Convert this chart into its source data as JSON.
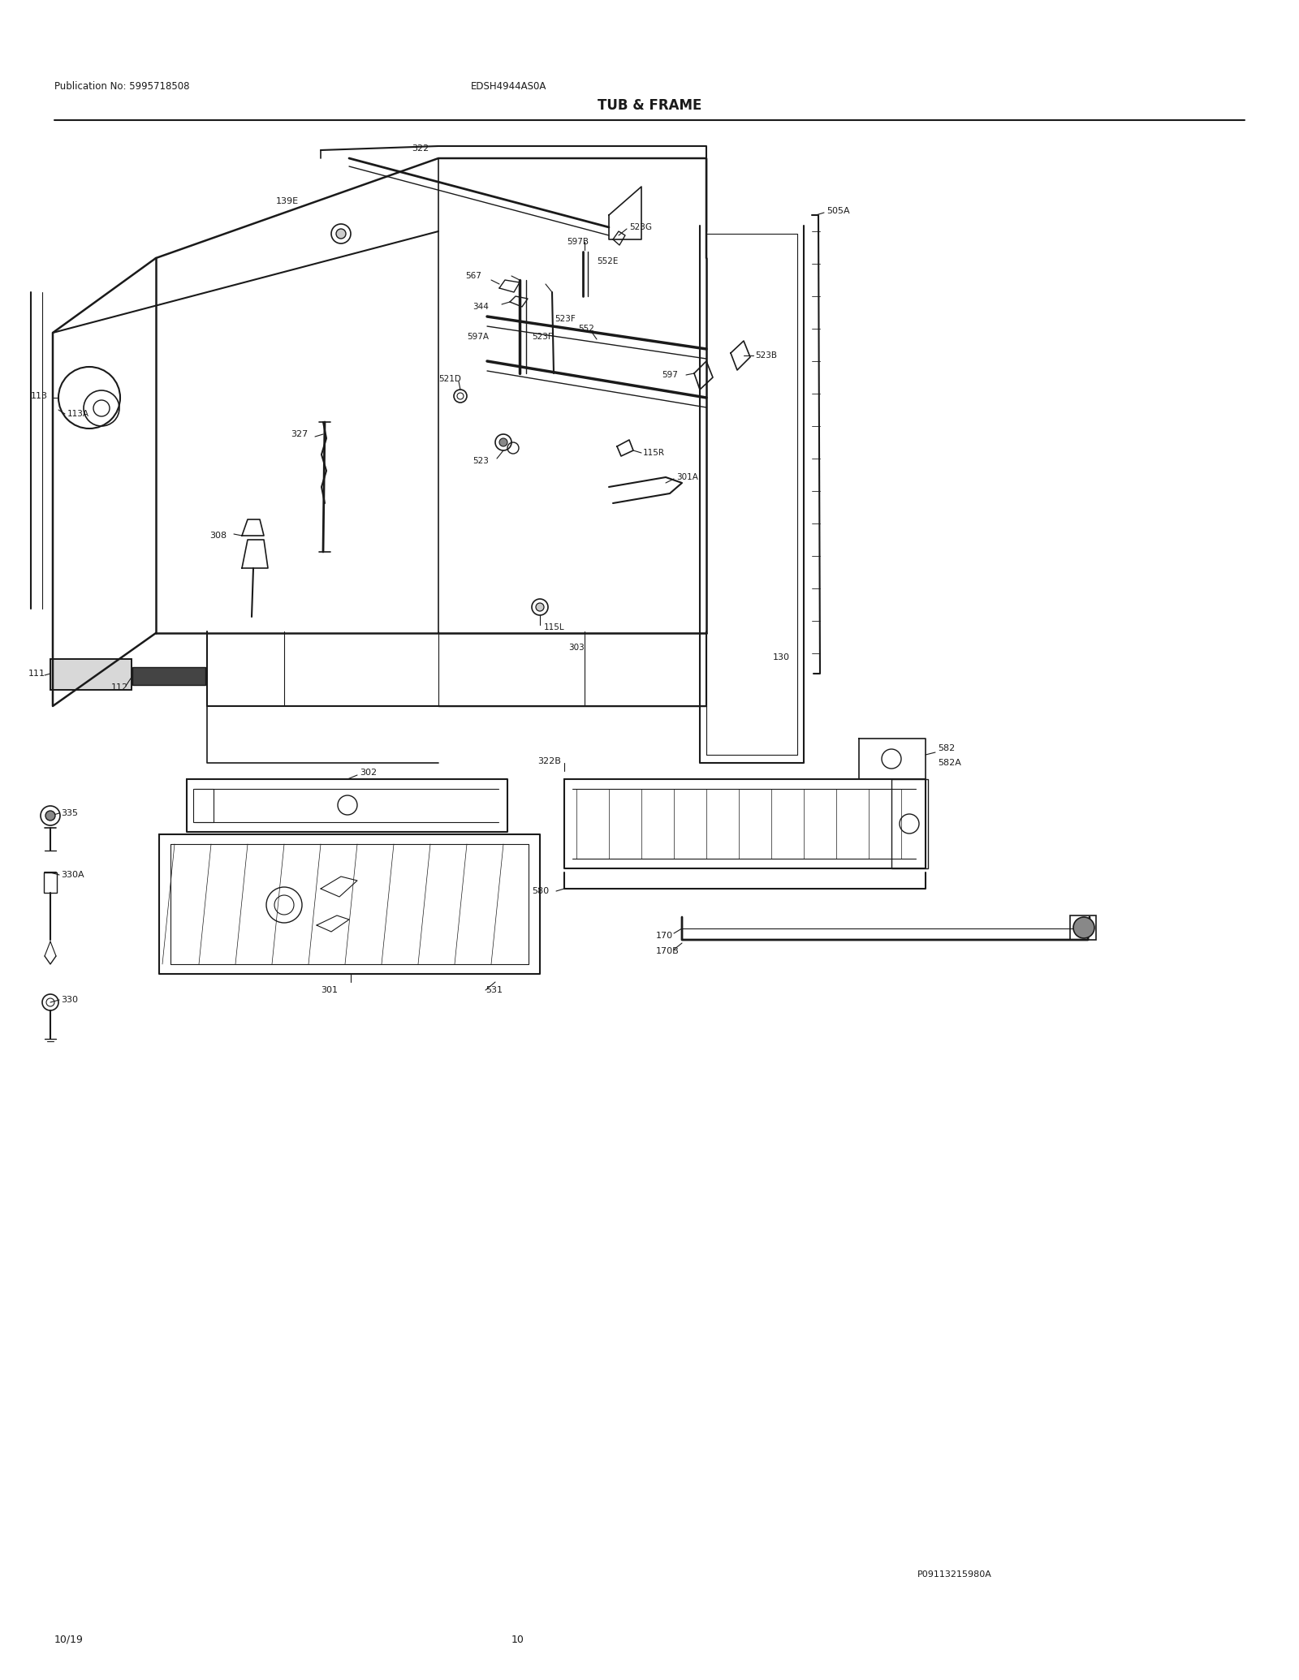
{
  "title": "TUB & FRAME",
  "pub_no": "Publication No: 5995718508",
  "model": "EDSH4944AS0A",
  "date_str": "10/19",
  "page_str": "10",
  "part_id": "P09113215980A",
  "bg_color": "#ffffff",
  "lc": "#1a1a1a",
  "tc": "#1a1a1a",
  "fig_w": 16.0,
  "fig_h": 20.7,
  "dpi": 100
}
